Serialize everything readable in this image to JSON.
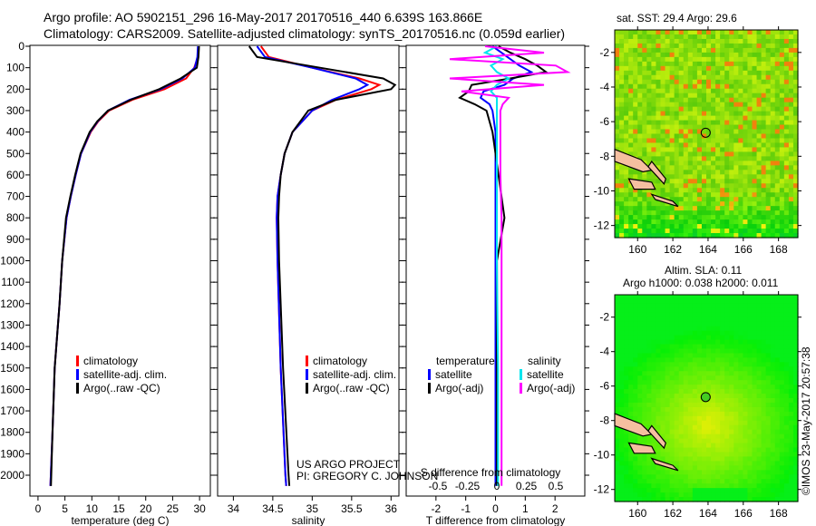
{
  "title": {
    "line1": "Argo profile: AO 5902151_296 16-May-2017 20170516_440 6.639S 163.866E",
    "line2": "Climatology: CARS2009. Satellite-adjusted climatology: synTS_20170516.nc (0.059d earlier)"
  },
  "credits": {
    "line1": "US ARGO PROJECT",
    "line2": "PI: GREGORY C. JOHNSON"
  },
  "timestamp": "©IMOS 23-May-2017 20:57:38",
  "colors": {
    "climatology": "#ff0000",
    "satellite": "#0000ff",
    "argo": "#000000",
    "sat_salinity": "#00e5ee",
    "argo_salinity": "#ff00ff"
  },
  "chart_data": [
    {
      "type": "line",
      "name": "temperature-profile",
      "xlabel": "temperature (deg C)",
      "ylabel": "",
      "xlim": [
        -1.5,
        32
      ],
      "ylim": [
        2095,
        0
      ],
      "xticks": [
        0,
        5,
        10,
        15,
        20,
        25,
        30
      ],
      "yticks": [
        0,
        100,
        200,
        300,
        400,
        500,
        600,
        700,
        800,
        900,
        1000,
        1100,
        1200,
        1300,
        1400,
        1500,
        1600,
        1700,
        1800,
        1900,
        2000
      ],
      "legend": [
        "climatology",
        "satellite-adj. clim.",
        "Argo(..raw -QC)"
      ],
      "depth": [
        0,
        50,
        100,
        150,
        200,
        250,
        300,
        350,
        400,
        500,
        600,
        700,
        800,
        1000,
        1200,
        1500,
        1800,
        2050
      ],
      "series": [
        {
          "name": "climatology",
          "values": [
            29.8,
            29.7,
            29.0,
            27.5,
            23.5,
            17.5,
            13.2,
            11.2,
            9.8,
            8.0,
            7.0,
            6.1,
            5.3,
            4.5,
            4.0,
            3.1,
            2.7,
            2.3
          ]
        },
        {
          "name": "satellite-adj. clim.",
          "values": [
            29.7,
            29.6,
            29.1,
            26.8,
            22.8,
            17.0,
            13.0,
            11.1,
            9.7,
            8.0,
            7.0,
            6.1,
            5.3,
            4.5,
            4.0,
            3.1,
            2.7,
            2.3
          ]
        },
        {
          "name": "Argo(..raw -QC)",
          "values": [
            29.9,
            29.8,
            29.5,
            26.5,
            22.5,
            17.2,
            13.0,
            11.0,
            9.6,
            7.9,
            6.9,
            6.0,
            5.2,
            4.5,
            4.0,
            3.1,
            2.7,
            2.4
          ]
        }
      ]
    },
    {
      "type": "line",
      "name": "salinity-profile",
      "xlabel": "salinity",
      "xlim": [
        33.8,
        36.1
      ],
      "ylim": [
        2095,
        0
      ],
      "xticks": [
        34,
        34.5,
        35,
        35.5,
        36
      ],
      "legend": [
        "climatology",
        "satellite-adj. clim.",
        "Argo(..raw -QC)"
      ],
      "depth": [
        0,
        50,
        100,
        150,
        180,
        200,
        250,
        300,
        400,
        500,
        600,
        700,
        800,
        1000,
        1500,
        2000,
        2050
      ],
      "series": [
        {
          "name": "climatology",
          "values": [
            34.35,
            34.45,
            35.0,
            35.6,
            35.85,
            35.75,
            35.3,
            35.0,
            34.75,
            34.65,
            34.6,
            34.56,
            34.55,
            34.56,
            34.6,
            34.66,
            34.67
          ]
        },
        {
          "name": "satellite-adj. clim.",
          "values": [
            34.3,
            34.4,
            35.0,
            35.55,
            35.7,
            35.6,
            35.25,
            35.0,
            34.75,
            34.65,
            34.6,
            34.56,
            34.55,
            34.56,
            34.6,
            34.66,
            34.67
          ]
        },
        {
          "name": "Argo(..raw -QC)",
          "values": [
            34.2,
            34.3,
            35.1,
            35.9,
            36.05,
            36.0,
            35.3,
            34.95,
            34.75,
            34.65,
            34.6,
            34.58,
            34.57,
            34.58,
            34.63,
            34.7,
            34.71
          ]
        }
      ]
    },
    {
      "type": "line",
      "name": "difference-profile",
      "xlabel": "T difference from climatology",
      "x2label": "S difference from climatology",
      "xlim": [
        -3,
        3
      ],
      "xticks": [
        -2,
        -1,
        0,
        1,
        2
      ],
      "x2ticks": [
        -0.5,
        -0.25,
        0,
        0.25,
        0.5
      ],
      "legend": {
        "temperature": "temperature",
        "salinity": "salinity",
        "items": [
          "satellite",
          "Argo(-adj)",
          "satellite",
          "Argo(-adj)"
        ]
      },
      "depth": [
        0,
        30,
        60,
        90,
        120,
        150,
        180,
        210,
        240,
        270,
        300,
        400,
        600,
        800,
        1000,
        1500,
        2050
      ],
      "series": [
        {
          "name": "T satellite",
          "values": [
            -0.1,
            0.2,
            0.5,
            0.8,
            1.2,
            0.6,
            0.3,
            -0.4,
            -0.5,
            -0.2,
            -0.1,
            0.0,
            0.0,
            0.0,
            0.0,
            0.0,
            0.0
          ]
        },
        {
          "name": "T Argo(-adj)",
          "values": [
            0.1,
            0.5,
            1.0,
            1.4,
            1.7,
            0.5,
            -0.8,
            -0.9,
            -1.2,
            -0.7,
            -0.3,
            -0.1,
            0.1,
            0.3,
            0.05,
            0.05,
            0.05
          ]
        },
        {
          "name": "S satellite",
          "values": [
            0.0,
            -0.1,
            0.05,
            -0.05,
            0.0,
            0.1,
            0.0,
            -0.05,
            0.0,
            0.0,
            0.0,
            0.0,
            0.0,
            0.0,
            0.0,
            0.01,
            0.01
          ]
        },
        {
          "name": "S Argo(-adj)",
          "values": [
            -0.1,
            0.4,
            -0.4,
            0.5,
            0.6,
            -0.4,
            0.4,
            -0.3,
            0.1,
            0.05,
            0.03,
            0.03,
            0.03,
            0.04,
            0.04,
            0.04,
            0.04
          ]
        }
      ]
    },
    {
      "type": "heatmap",
      "name": "sst-map",
      "title": "sat. SST: 29.4  Argo: 29.6",
      "xlim": [
        158.7,
        169.1
      ],
      "ylim": [
        -12.7,
        -0.7
      ],
      "xticks": [
        160,
        162,
        164,
        166,
        168
      ],
      "yticks": [
        -2,
        -4,
        -6,
        -8,
        -10,
        -12
      ],
      "marker": {
        "lon": 163.866,
        "lat": -6.639
      }
    },
    {
      "type": "heatmap",
      "name": "sla-map",
      "title": "Altim. SLA: 0.11",
      "subtitle": "Argo h1000: 0.038 h2000: 0.011",
      "xlim": [
        158.7,
        169.1
      ],
      "ylim": [
        -12.7,
        -0.7
      ],
      "xticks": [
        160,
        162,
        164,
        166,
        168
      ],
      "yticks": [
        -2,
        -4,
        -6,
        -8,
        -10,
        -12
      ],
      "marker": {
        "lon": 163.866,
        "lat": -6.639
      }
    }
  ]
}
